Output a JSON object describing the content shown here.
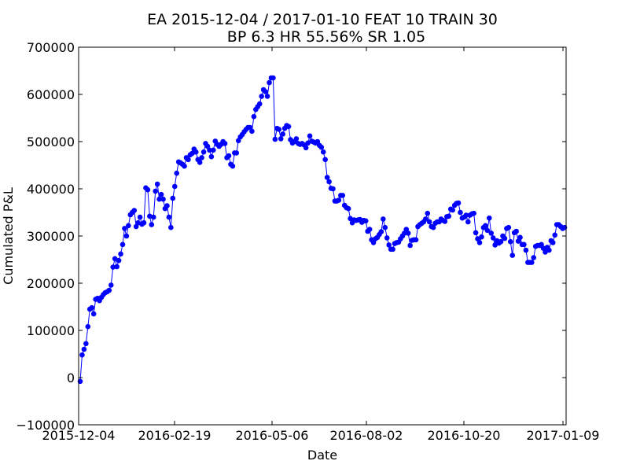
{
  "chart_data": {
    "type": "line",
    "title_line1": "EA 2015-12-04 / 2017-01-10 FEAT 10 TRAIN 30",
    "title_line2": "BP 6.3 HR 55.56%  SR 1.05",
    "xlabel": "Date",
    "ylabel": "Cumulated P&L",
    "x_tick_labels": [
      "2015-12-04",
      "2016-02-19",
      "2016-05-06",
      "2016-08-02",
      "2016-10-20",
      "2017-01-09"
    ],
    "y_tick_labels": [
      "−100000",
      "0",
      "100000",
      "200000",
      "300000",
      "400000",
      "500000",
      "600000",
      "700000"
    ],
    "ylim": [
      -100000,
      700000
    ],
    "line_color": "#0000ff",
    "marker": "circle",
    "grid": false,
    "series": [
      {
        "values": [
          -8000,
          48000,
          60000,
          72000,
          108000,
          145000,
          148000,
          135000,
          166000,
          168000,
          163000,
          170000,
          176000,
          180000,
          182000,
          185000,
          196000,
          234000,
          252000,
          235000,
          248000,
          262000,
          282000,
          316000,
          300000,
          322000,
          345000,
          350000,
          354000,
          320000,
          328000,
          340000,
          325000,
          328000,
          402000,
          398000,
          342000,
          324000,
          340000,
          395000,
          410000,
          378000,
          388000,
          378000,
          358000,
          364000,
          340000,
          318000,
          380000,
          405000,
          433000,
          457000,
          455000,
          452000,
          448000,
          466000,
          462000,
          472000,
          475000,
          484000,
          478000,
          462000,
          456000,
          466000,
          478000,
          496000,
          490000,
          482000,
          468000,
          482000,
          501000,
          494000,
          490000,
          494000,
          500000,
          496000,
          466000,
          470000,
          452000,
          448000,
          476000,
          476000,
          502000,
          510000,
          515000,
          521000,
          526000,
          530000,
          530000,
          522000,
          553000,
          568000,
          574000,
          580000,
          596000,
          610000,
          606000,
          596000,
          625000,
          635000,
          635000,
          505000,
          528000,
          526000,
          506000,
          516000,
          528000,
          534000,
          532000,
          504000,
          497000,
          500000,
          506000,
          496000,
          494000,
          496000,
          493000,
          487000,
          497000,
          512000,
          501000,
          499000,
          497000,
          500000,
          492000,
          488000,
          478000,
          462000,
          424000,
          415000,
          401000,
          400000,
          374000,
          374000,
          376000,
          386000,
          386000,
          365000,
          360000,
          358000,
          337000,
          328000,
          334000,
          333000,
          334000,
          335000,
          329000,
          333000,
          332000,
          310000,
          314000,
          292000,
          286000,
          294000,
          297000,
          303000,
          309000,
          336000,
          318000,
          296000,
          281000,
          272000,
          272000,
          284000,
          286000,
          287000,
          294000,
          300000,
          306000,
          314000,
          306000,
          280000,
          291000,
          292000,
          292000,
          320000,
          324000,
          327000,
          330000,
          336000,
          348000,
          330000,
          320000,
          318000,
          327000,
          330000,
          330000,
          336000,
          333000,
          331000,
          341000,
          342000,
          357000,
          355000,
          365000,
          369000,
          370000,
          350000,
          338000,
          340000,
          344000,
          330000,
          344000,
          347000,
          348000,
          307000,
          294000,
          286000,
          298000,
          318000,
          322000,
          312000,
          338000,
          306000,
          296000,
          281000,
          290000,
          285000,
          288000,
          300000,
          295000,
          316000,
          318000,
          288000,
          259000,
          307000,
          310000,
          289000,
          297000,
          282000,
          282000,
          270000,
          244000,
          244000,
          244000,
          254000,
          278000,
          280000,
          280000,
          282000,
          274000,
          266000,
          276000,
          270000,
          290000,
          286000,
          302000,
          324000,
          324000,
          320000,
          316000,
          318000
        ]
      }
    ]
  }
}
